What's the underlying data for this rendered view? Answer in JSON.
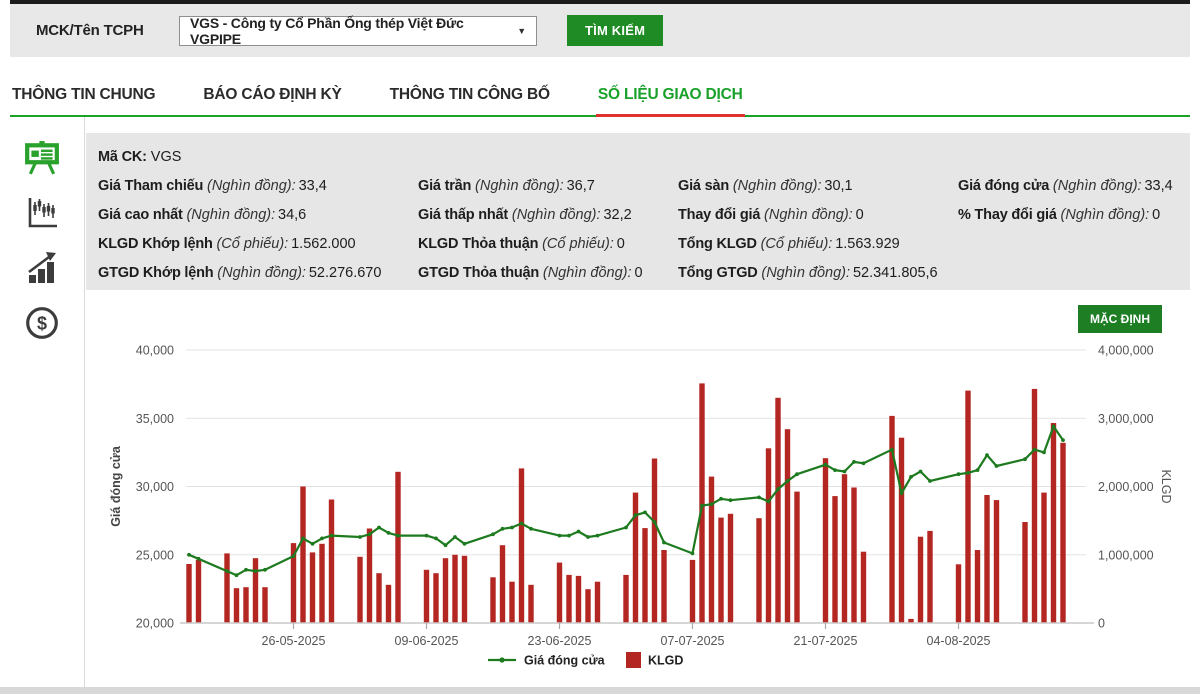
{
  "header": {
    "label": "MCK/Tên TCPH",
    "select_value": "VGS - Công ty Cổ Phần Ống thép Việt Đức VGPIPE",
    "search_button": "TÌM KIẾM"
  },
  "tabs": [
    {
      "id": "thong-tin-chung",
      "label": "THÔNG TIN CHUNG",
      "active": false
    },
    {
      "id": "bao-cao-dinh-ky",
      "label": "BÁO CÁO ĐỊNH KỲ",
      "active": false
    },
    {
      "id": "thong-tin-cong-bo",
      "label": "THÔNG TIN CÔNG BỐ",
      "active": false
    },
    {
      "id": "so-lieu-giao-dich",
      "label": "SỐ LIỆU GIAO DỊCH",
      "active": true
    }
  ],
  "sidebar": {
    "icons": [
      "presentation-board",
      "candlestick-chart",
      "bar-chart-growth",
      "dollar-coin"
    ]
  },
  "info": {
    "ma_ck_label": "Mã CK:",
    "ma_ck_value": "VGS",
    "rows": [
      [
        {
          "label": "Giá Tham chiếu",
          "unit": "(Nghìn đồng):",
          "value": "33,4"
        },
        {
          "label": "Giá trần",
          "unit": "(Nghìn đồng):",
          "value": "36,7"
        },
        {
          "label": "Giá sàn",
          "unit": "(Nghìn đồng):",
          "value": "30,1"
        },
        {
          "label": "Giá đóng cửa",
          "unit": "(Nghìn đồng):",
          "value": "33,4"
        }
      ],
      [
        {
          "label": "Giá cao nhất",
          "unit": "(Nghìn đồng):",
          "value": "34,6"
        },
        {
          "label": "Giá thấp nhất",
          "unit": "(Nghìn đồng):",
          "value": "32,2"
        },
        {
          "label": "Thay đổi giá",
          "unit": "(Nghìn đồng):",
          "value": "0"
        },
        {
          "label": "% Thay đổi giá",
          "unit": "(Nghìn đồng):",
          "value": "0"
        }
      ],
      [
        {
          "label": "KLGD Khớp lệnh",
          "unit": "(Cổ phiếu):",
          "value": "1.562.000"
        },
        {
          "label": "KLGD Thỏa thuận",
          "unit": "(Cổ phiếu):",
          "value": "0"
        },
        {
          "label": "Tổng KLGD",
          "unit": "(Cổ phiếu):",
          "value": "1.563.929"
        },
        null
      ],
      [
        {
          "label": "GTGD Khớp lệnh",
          "unit": "(Nghìn đồng):",
          "value": "52.276.670"
        },
        {
          "label": "GTGD Thỏa thuận",
          "unit": "(Nghìn đồng):",
          "value": "0"
        },
        {
          "label": "Tổng GTGD",
          "unit": "(Nghìn đồng):",
          "value": "52.341.805,6"
        },
        null
      ]
    ]
  },
  "chart": {
    "default_button": "MẶC ĐỊNH"
  },
  "colors": {
    "accent_green": "#1e8b24",
    "tab_green": "#19a129",
    "underline_red": "#e03131",
    "bar_red": "#b32621",
    "line_green": "#1e7a1f",
    "panel_gray": "#e6e6e6"
  },
  "chart_data": {
    "type": "line",
    "title": "",
    "ylabel_left": "Giá đóng cửa",
    "ylabel_right": "KLGD",
    "ylim_left": [
      20000,
      40000
    ],
    "ylim_right": [
      0,
      4000000
    ],
    "yticks_left": [
      40000,
      35000,
      30000,
      25000,
      20000
    ],
    "yticks_right": [
      4000000,
      3000000,
      2000000,
      1000000,
      0
    ],
    "xticks": [
      "26-05-2025",
      "09-06-2025",
      "23-06-2025",
      "07-07-2025",
      "21-07-2025",
      "04-08-2025"
    ],
    "grid": "horizontal",
    "legend_position": "bottom",
    "x": [
      "15-05-2025",
      "16-05-2025",
      "19-05-2025",
      "20-05-2025",
      "21-05-2025",
      "22-05-2025",
      "23-05-2025",
      "26-05-2025",
      "27-05-2025",
      "28-05-2025",
      "29-05-2025",
      "30-05-2025",
      "02-06-2025",
      "03-06-2025",
      "04-06-2025",
      "05-06-2025",
      "06-06-2025",
      "09-06-2025",
      "10-06-2025",
      "11-06-2025",
      "12-06-2025",
      "13-06-2025",
      "16-06-2025",
      "17-06-2025",
      "18-06-2025",
      "19-06-2025",
      "20-06-2025",
      "23-06-2025",
      "24-06-2025",
      "25-06-2025",
      "26-06-2025",
      "27-06-2025",
      "30-06-2025",
      "01-07-2025",
      "02-07-2025",
      "03-07-2025",
      "04-07-2025",
      "07-07-2025",
      "08-07-2025",
      "09-07-2025",
      "10-07-2025",
      "11-07-2025",
      "14-07-2025",
      "15-07-2025",
      "16-07-2025",
      "17-07-2025",
      "18-07-2025",
      "21-07-2025",
      "22-07-2025",
      "23-07-2025",
      "24-07-2025",
      "25-07-2025",
      "28-07-2025",
      "29-07-2025",
      "30-07-2025",
      "31-07-2025",
      "01-08-2025",
      "04-08-2025",
      "05-08-2025",
      "06-08-2025",
      "07-08-2025",
      "08-08-2025",
      "11-08-2025",
      "12-08-2025",
      "13-08-2025",
      "14-08-2025",
      "15-08-2025"
    ],
    "series": [
      {
        "name": "Giá đóng cửa",
        "kind": "line",
        "axis": "left",
        "color": "#1e7a1f",
        "values": [
          25000,
          24700,
          23800,
          23500,
          23900,
          23800,
          23900,
          24900,
          26200,
          25800,
          26200,
          26400,
          26300,
          26500,
          27000,
          26600,
          26400,
          26400,
          26200,
          25700,
          26300,
          25800,
          26500,
          26900,
          27000,
          27300,
          26900,
          26400,
          26400,
          26700,
          26300,
          26400,
          27000,
          27900,
          28100,
          27400,
          25900,
          25100,
          28600,
          28700,
          29100,
          29000,
          29200,
          28900,
          29800,
          30400,
          30900,
          31600,
          31200,
          31100,
          31800,
          31700,
          32700,
          29500,
          30700,
          31100,
          30400,
          30900,
          31000,
          31200,
          32300,
          31500,
          32000,
          32700,
          32500,
          34400,
          33400
        ]
      },
      {
        "name": "KLGD",
        "kind": "bar",
        "axis": "right",
        "color": "#b32621",
        "values": [
          865000,
          925000,
          1020000,
          510000,
          525000,
          950000,
          525000,
          1170000,
          2000000,
          1035000,
          1160000,
          1810000,
          970000,
          1385000,
          730000,
          560000,
          2215000,
          780000,
          730000,
          950000,
          1000000,
          985000,
          670000,
          1140000,
          605000,
          2265000,
          560000,
          885000,
          705000,
          690000,
          495000,
          605000,
          705000,
          1910000,
          1390000,
          2410000,
          1070000,
          925000,
          3510000,
          2145000,
          1545000,
          1600000,
          1535000,
          2560000,
          3300000,
          2840000,
          1925000,
          2415000,
          1860000,
          2180000,
          1985000,
          1045000,
          3035000,
          2715000,
          60000,
          1265000,
          1350000,
          860000,
          3405000,
          1070000,
          1875000,
          1800000,
          1480000,
          3430000,
          1910000,
          2930000,
          2640000
        ]
      }
    ]
  }
}
